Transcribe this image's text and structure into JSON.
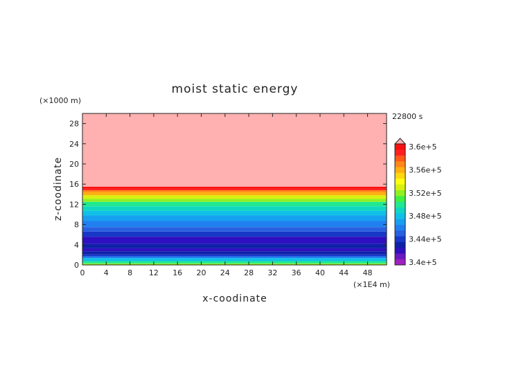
{
  "chart_data": {
    "type": "heatmap",
    "title": "moist static energy",
    "time_label": "22800 s",
    "xlabel": "x-coodinate",
    "ylabel": "z-coodinate",
    "x_unit": "(×1E4 m)",
    "y_unit": "(×1000 m)",
    "xlim": [
      0,
      51.2
    ],
    "ylim": [
      0,
      30
    ],
    "x_ticks": [
      0,
      4,
      8,
      12,
      16,
      20,
      24,
      28,
      32,
      36,
      40,
      44,
      48
    ],
    "y_ticks": [
      0,
      4,
      8,
      12,
      16,
      20,
      24,
      28
    ],
    "colorbar": {
      "levels": [
        340000,
        341000,
        342000,
        343000,
        344000,
        345000,
        346000,
        347000,
        348000,
        349000,
        350000,
        351000,
        352000,
        353000,
        354000,
        355000,
        356000,
        357000,
        358000,
        359000,
        360000,
        361000
      ],
      "labels": [
        "3.4e+5",
        "3.44e+5",
        "3.48e+5",
        "3.52e+5",
        "3.56e+5",
        "3.6e+5"
      ],
      "label_values": [
        340000,
        344000,
        348000,
        352000,
        356000,
        360000
      ],
      "colors": [
        "#a020c0",
        "#6a18c0",
        "#2f10c0",
        "#1020a8",
        "#1838c8",
        "#2860e0",
        "#2080f0",
        "#18a0f0",
        "#10c0e8",
        "#10d8c0",
        "#20e890",
        "#40f040",
        "#90f020",
        "#d8f010",
        "#ffff10",
        "#ffd810",
        "#ffb010",
        "#ff8818",
        "#ff5818",
        "#ff2020",
        "#f81010"
      ],
      "over_color": "#ffb0b0"
    },
    "layers": [
      {
        "z0": 0.0,
        "z1": 0.3,
        "value": 352700
      },
      {
        "z0": 0.3,
        "z1": 0.75,
        "value": 350500
      },
      {
        "z0": 0.75,
        "z1": 1.35,
        "value": 348500
      },
      {
        "z0": 1.35,
        "z1": 1.7,
        "value": 346500
      },
      {
        "z0": 1.7,
        "z1": 2.1,
        "value": 344800
      },
      {
        "z0": 2.1,
        "z1": 2.7,
        "value": 343800
      },
      {
        "z0": 2.7,
        "z1": 3.3,
        "value": 342800
      },
      {
        "z0": 3.3,
        "z1": 4.2,
        "value": 343500
      },
      {
        "z0": 4.2,
        "z1": 5.6,
        "value": 342500
      },
      {
        "z0": 5.6,
        "z1": 6.6,
        "value": 344500
      },
      {
        "z0": 6.6,
        "z1": 7.5,
        "value": 345500
      },
      {
        "z0": 7.5,
        "z1": 8.7,
        "value": 346500
      },
      {
        "z0": 8.7,
        "z1": 9.8,
        "value": 347500
      },
      {
        "z0": 9.8,
        "z1": 10.7,
        "value": 348500
      },
      {
        "z0": 10.7,
        "z1": 11.6,
        "value": 349500
      },
      {
        "z0": 11.6,
        "z1": 12.5,
        "value": 350500
      },
      {
        "z0": 12.5,
        "z1": 13.1,
        "value": 352500
      },
      {
        "z0": 13.1,
        "z1": 13.8,
        "value": 353500
      },
      {
        "z0": 13.8,
        "z1": 14.4,
        "value": 356500
      },
      {
        "z0": 14.4,
        "z1": 14.8,
        "value": 357500
      },
      {
        "z0": 14.8,
        "z1": 15.2,
        "value": 359500
      },
      {
        "z0": 15.2,
        "z1": 15.5,
        "value": 360500
      },
      {
        "z0": 15.5,
        "z1": 30.0,
        "value": 362000
      }
    ]
  }
}
